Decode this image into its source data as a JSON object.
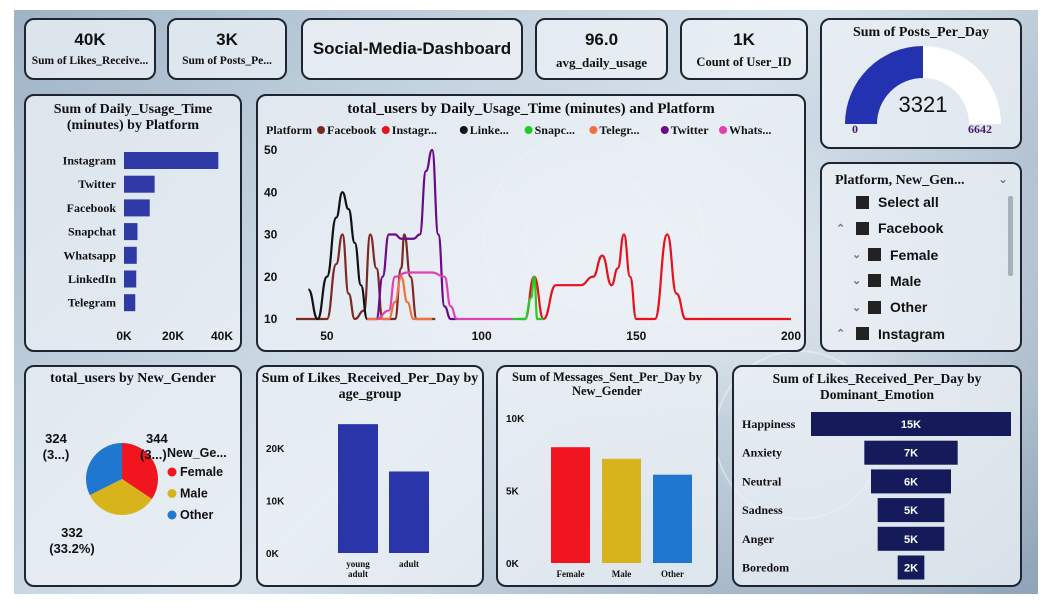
{
  "kpis": [
    {
      "value": "40K",
      "label": "Sum of Likes_Receive..."
    },
    {
      "value": "3K",
      "label": "Sum of Posts_Pe..."
    },
    {
      "value": "96.0",
      "label": "avg_daily_usage"
    },
    {
      "value": "1K",
      "label": "Count of User_ID"
    }
  ],
  "dashboard_title": "Social-Media-Dashboard",
  "gauge": {
    "title": "Sum of Posts_Per_Day",
    "value": "3321",
    "min": "0",
    "max": "6642",
    "fraction": 0.5
  },
  "slicer": {
    "title": "Platform, New_Gen...",
    "items": [
      {
        "label": "Select all",
        "level": 0,
        "chev": ""
      },
      {
        "label": "Facebook",
        "level": 0,
        "chev": "^"
      },
      {
        "label": "Female",
        "level": 1,
        "chev": "v"
      },
      {
        "label": "Male",
        "level": 1,
        "chev": "v"
      },
      {
        "label": "Other",
        "level": 1,
        "chev": "v"
      },
      {
        "label": "Instagram",
        "level": 0,
        "chev": "^"
      }
    ]
  },
  "chart_data": [
    {
      "id": "usage_by_platform",
      "type": "bar",
      "orientation": "horizontal",
      "title": "Sum of Daily_Usage_Time (minutes) by Platform",
      "categories": [
        "Instagram",
        "Twitter",
        "Facebook",
        "Snapchat",
        "Whatsapp",
        "LinkedIn",
        "Telegram"
      ],
      "values": [
        38500,
        12500,
        10500,
        5500,
        5200,
        5000,
        4600
      ],
      "xticks": [
        "0K",
        "20K",
        "40K"
      ],
      "xlim": [
        0,
        40000
      ],
      "color": "#2f3aa6"
    },
    {
      "id": "users_by_usage_platform",
      "type": "line",
      "title": "total_users by Daily_Usage_Time (minutes) and Platform",
      "legend_title": "Platform",
      "xlim": [
        40,
        200
      ],
      "ylim": [
        10,
        50
      ],
      "xticks": [
        50,
        100,
        150,
        200
      ],
      "yticks": [
        10,
        20,
        30,
        40,
        50
      ],
      "series": [
        {
          "name": "Facebook",
          "color": "#7a2a24",
          "points": [
            [
              40,
              10
            ],
            [
              50,
              10
            ],
            [
              53,
              23
            ],
            [
              55,
              30
            ],
            [
              57,
              16
            ],
            [
              59,
              10
            ],
            [
              62,
              12
            ],
            [
              64,
              30
            ],
            [
              66,
              22
            ],
            [
              68,
              10
            ],
            [
              72,
              10
            ],
            [
              74,
              22
            ],
            [
              75,
              30
            ],
            [
              77,
              20
            ],
            [
              79,
              10
            ],
            [
              85,
              10
            ]
          ]
        },
        {
          "name": "Instagr...",
          "color": "#e8101a",
          "points": [
            [
              112,
              10
            ],
            [
              114,
              10
            ],
            [
              117,
              20
            ],
            [
              120,
              10
            ],
            [
              124,
              18
            ],
            [
              128,
              18
            ],
            [
              132,
              18
            ],
            [
              136,
              20
            ],
            [
              139,
              25
            ],
            [
              142,
              18
            ],
            [
              144,
              22
            ],
            [
              146,
              30
            ],
            [
              148,
              20
            ],
            [
              150,
              10
            ],
            [
              152,
              10
            ],
            [
              156,
              10
            ],
            [
              160,
              30
            ],
            [
              163,
              16
            ],
            [
              166,
              10
            ],
            [
              200,
              10
            ]
          ]
        },
        {
          "name": "Linke...",
          "color": "#111111",
          "points": [
            [
              44,
              17
            ],
            [
              47,
              10
            ],
            [
              50,
              20
            ],
            [
              53,
              34
            ],
            [
              55,
              40
            ],
            [
              57,
              36
            ],
            [
              59,
              28
            ],
            [
              61,
              18
            ],
            [
              63,
              10
            ],
            [
              66,
              10
            ]
          ]
        },
        {
          "name": "Snapc...",
          "color": "#22cc22",
          "points": [
            [
              110,
              10
            ],
            [
              114,
              10
            ],
            [
              116,
              15
            ],
            [
              117,
              20
            ],
            [
              118,
              10
            ],
            [
              120,
              10
            ]
          ]
        },
        {
          "name": "Telegr...",
          "color": "#f07040",
          "points": [
            [
              63,
              10
            ],
            [
              70,
              10
            ],
            [
              72,
              14
            ],
            [
              74,
              20
            ],
            [
              76,
              14
            ],
            [
              78,
              10
            ],
            [
              84,
              10
            ]
          ]
        },
        {
          "name": "Twitter",
          "color": "#6a0a8a",
          "points": [
            [
              66,
              10
            ],
            [
              68,
              20
            ],
            [
              70,
              30
            ],
            [
              72,
              30
            ],
            [
              74,
              29
            ],
            [
              76,
              29
            ],
            [
              78,
              29
            ],
            [
              80,
              30
            ],
            [
              82,
              45
            ],
            [
              84,
              50
            ],
            [
              86,
              30
            ],
            [
              88,
              13
            ],
            [
              90,
              10
            ],
            [
              92,
              10
            ]
          ]
        },
        {
          "name": "Whats...",
          "color": "#e040b0",
          "points": [
            [
              66,
              10
            ],
            [
              70,
              12
            ],
            [
              72,
              20
            ],
            [
              76,
              21
            ],
            [
              80,
              21
            ],
            [
              84,
              21
            ],
            [
              88,
              20
            ],
            [
              90,
              13
            ],
            [
              92,
              10
            ],
            [
              110,
              10
            ]
          ]
        }
      ]
    },
    {
      "id": "users_by_gender",
      "type": "pie",
      "title": "total_users by New_Gender",
      "legend_title": "New_Ge...",
      "slices": [
        {
          "name": "Female",
          "value": 344,
          "label": "344",
          "sublabel": "(3...)",
          "color": "#f0151f"
        },
        {
          "name": "Male",
          "value": 332,
          "label": "332",
          "sublabel": "(33.2%)",
          "color": "#d8b41c"
        },
        {
          "name": "Other",
          "value": 324,
          "label": "324",
          "sublabel": "(3...)",
          "color": "#1f77d0"
        }
      ]
    },
    {
      "id": "likes_by_age",
      "type": "bar",
      "title": "Sum of Likes_Received_Per_Day by age_group",
      "categories": [
        "young adult",
        "adult"
      ],
      "values": [
        24500,
        15500
      ],
      "yticks": [
        "0K",
        "10K",
        "20K"
      ],
      "ylim": [
        0,
        27000
      ],
      "color": "#2b35aa"
    },
    {
      "id": "messages_by_gender",
      "type": "bar",
      "title": "Sum of Messages_Sent_Per_Day by New_Gender",
      "categories": [
        "Female",
        "Male",
        "Other"
      ],
      "values": [
        8000,
        7200,
        6100
      ],
      "colors": [
        "#f0151f",
        "#d8b41c",
        "#1f77d0"
      ],
      "yticks": [
        "0K",
        "5K",
        "10K"
      ],
      "ylim": [
        0,
        10500
      ]
    },
    {
      "id": "likes_by_emotion",
      "type": "bar",
      "orientation": "horizontal",
      "title": "Sum of Likes_Received_Per_Day by Dominant_Emotion",
      "categories": [
        "Happiness",
        "Anxiety",
        "Neutral",
        "Sadness",
        "Anger",
        "Boredom"
      ],
      "values": [
        15000,
        7000,
        6000,
        5000,
        5000,
        2000
      ],
      "labels": [
        "15K",
        "7K",
        "6K",
        "5K",
        "5K",
        "2K"
      ],
      "color": "#141a5a"
    }
  ]
}
